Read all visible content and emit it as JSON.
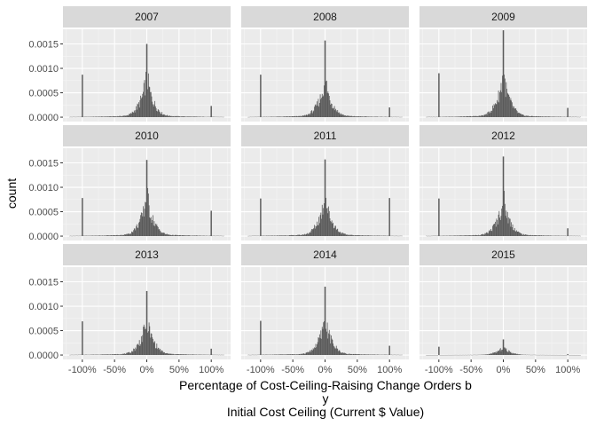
{
  "chart_data": {
    "type": "histogram",
    "facet_by": "year",
    "xlabel_lines": [
      "Percentage of Cost-Ceiling-Raising Change Orders b",
      "y",
      "Initial Cost Ceiling (Current $ Value)"
    ],
    "ylabel": "count",
    "xlim": [
      -1.3,
      1.3
    ],
    "ylim": [
      -9e-05,
      0.0018
    ],
    "x_ticks": [
      -1.0,
      -0.5,
      0.0,
      0.5,
      1.0
    ],
    "x_tick_labels": [
      "-100%",
      "-50%",
      "0%",
      "50%",
      "100%"
    ],
    "y_ticks": [
      0.0,
      0.0005,
      0.001,
      0.0015
    ],
    "y_tick_labels": [
      "0.0000",
      "0.0005",
      "0.0010",
      "0.0015"
    ],
    "grid": true,
    "bar_color": "#595959",
    "panel_bg": "#ebebeb",
    "strip_bg": "#d9d9d9",
    "panels": [
      {
        "year": "2007",
        "peak_at_0": 0.0015,
        "spike_at_neg100": 0.00087,
        "spike_at_100": 0.00023,
        "scale": 1.0
      },
      {
        "year": "2008",
        "peak_at_0": 0.00157,
        "spike_at_neg100": 0.00087,
        "spike_at_100": 0.0002,
        "scale": 0.95
      },
      {
        "year": "2009",
        "peak_at_0": 0.00178,
        "spike_at_neg100": 0.0009,
        "spike_at_100": 0.00019,
        "scale": 1.05
      },
      {
        "year": "2010",
        "peak_at_0": 0.00156,
        "spike_at_neg100": 0.00078,
        "spike_at_100": 0.00052,
        "scale": 1.0
      },
      {
        "year": "2011",
        "peak_at_0": 0.00157,
        "spike_at_neg100": 0.00077,
        "spike_at_100": 0.00078,
        "scale": 1.0
      },
      {
        "year": "2012",
        "peak_at_0": 0.00163,
        "spike_at_neg100": 0.00077,
        "spike_at_100": 0.00016,
        "scale": 0.95
      },
      {
        "year": "2013",
        "peak_at_0": 0.00131,
        "spike_at_neg100": 0.00069,
        "spike_at_100": 0.00013,
        "scale": 0.9
      },
      {
        "year": "2014",
        "peak_at_0": 0.0014,
        "spike_at_neg100": 0.0007,
        "spike_at_100": 0.00019,
        "scale": 0.9
      },
      {
        "year": "2015",
        "peak_at_0": 0.00032,
        "spike_at_neg100": 0.00017,
        "spike_at_100": 2e-05,
        "scale": 0.2
      }
    ]
  }
}
